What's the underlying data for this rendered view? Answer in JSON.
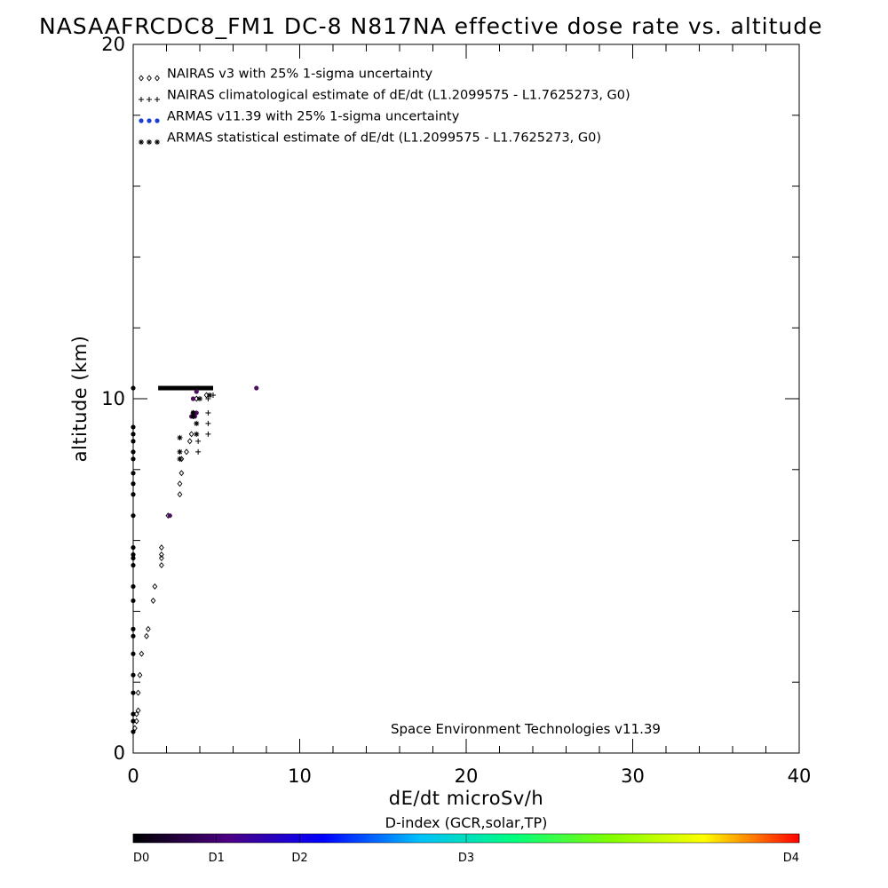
{
  "chart_data": {
    "type": "scatter",
    "title": "NASAAFRCDC8_FM1 DC-8   N817NA effective dose rate vs. altitude",
    "xlabel": "dE/dt microSv/h",
    "ylabel": "altitude (km)",
    "xlim": [
      0,
      40
    ],
    "ylim": [
      0,
      20
    ],
    "x_ticks": [
      "0",
      "10",
      "20",
      "30",
      "40"
    ],
    "y_ticks": [
      "0",
      "10",
      "20"
    ],
    "x_minor_step": 2,
    "y_minor_step": 2,
    "grid": false,
    "legend_placement": "top-left",
    "legend": [
      {
        "label": "NAIRAS v3 with 25% 1-sigma uncertainty",
        "symbol": "diamond"
      },
      {
        "label": "NAIRAS climatological estimate of dE/dt (L1.2099575 - L1.7625273, G0)",
        "symbol": "plus"
      },
      {
        "label": "ARMAS v11.39 with 25% 1-sigma uncertainty",
        "symbol": "dot",
        "color": "#1a3fd1"
      },
      {
        "label": "ARMAS statistical estimate of dE/dt (L1.2099575 - L1.7625273, G0)",
        "symbol": "asterisk"
      }
    ],
    "annotation": "Space Environment Technologies v11.39",
    "colorbar": {
      "title": "D-index (GCR,solar,TP)",
      "labels": [
        "D0",
        "D1",
        "D2",
        "D3",
        "D4"
      ],
      "label_positions": [
        0,
        0.125,
        0.25,
        0.5,
        1.0
      ],
      "colors": [
        "#000000",
        "#4b0082",
        "#0000ff",
        "#00bfff",
        "#00ff7f",
        "#7fff00",
        "#ffff00",
        "#ff0000"
      ]
    },
    "series": [
      {
        "name": "NAIRAS v3 with 25% 1-sigma uncertainty",
        "symbol": "diamond",
        "points": [
          [
            0.1,
            0.7
          ],
          [
            0.2,
            0.9
          ],
          [
            0.2,
            1.1
          ],
          [
            0.3,
            1.2
          ],
          [
            0.3,
            1.7
          ],
          [
            0.4,
            2.2
          ],
          [
            0.5,
            2.8
          ],
          [
            0.8,
            3.3
          ],
          [
            0.9,
            3.5
          ],
          [
            1.2,
            4.3
          ],
          [
            1.3,
            4.7
          ],
          [
            1.7,
            5.3
          ],
          [
            1.7,
            5.5
          ],
          [
            1.7,
            5.6
          ],
          [
            1.7,
            5.8
          ],
          [
            2.1,
            6.7
          ],
          [
            2.8,
            7.3
          ],
          [
            2.8,
            7.6
          ],
          [
            2.9,
            7.9
          ],
          [
            2.9,
            8.3
          ],
          [
            3.2,
            8.5
          ],
          [
            3.4,
            8.8
          ],
          [
            3.5,
            9.0
          ],
          [
            3.6,
            9.6
          ],
          [
            3.8,
            10.0
          ],
          [
            4.4,
            10.1
          ]
        ]
      },
      {
        "name": "NAIRAS climatological estimate of dE/dt (L1.2099575 - L1.7625273, G0)",
        "symbol": "plus",
        "points": [
          [
            3.9,
            8.5
          ],
          [
            3.9,
            8.8
          ],
          [
            4.5,
            9.0
          ],
          [
            4.5,
            9.3
          ],
          [
            4.5,
            9.6
          ],
          [
            4.5,
            10.0
          ],
          [
            4.8,
            10.1
          ]
        ]
      },
      {
        "name": "ARMAS v11.39 with 25% 1-sigma uncertainty",
        "symbol": "dot",
        "points": [
          [
            0.0,
            0.6
          ],
          [
            0.0,
            0.9
          ],
          [
            0.0,
            1.1
          ],
          [
            0.0,
            1.7
          ],
          [
            0.0,
            2.2
          ],
          [
            0.0,
            2.8
          ],
          [
            0.0,
            3.3
          ],
          [
            0.0,
            3.5
          ],
          [
            0.0,
            4.3
          ],
          [
            0.0,
            4.7
          ],
          [
            0.0,
            5.3
          ],
          [
            0.0,
            5.5
          ],
          [
            0.0,
            5.6
          ],
          [
            0.0,
            5.8
          ],
          [
            0.0,
            6.7
          ],
          [
            0.0,
            7.3
          ],
          [
            0.0,
            7.6
          ],
          [
            0.0,
            7.9
          ],
          [
            0.0,
            8.3
          ],
          [
            0.0,
            8.5
          ],
          [
            0.0,
            8.8
          ],
          [
            0.0,
            9.0
          ],
          [
            0.0,
            9.2
          ],
          [
            0.0,
            10.3
          ],
          [
            2.2,
            6.7
          ],
          [
            3.5,
            9.5
          ],
          [
            3.7,
            9.5
          ],
          [
            3.8,
            9.6
          ],
          [
            3.6,
            10.0
          ],
          [
            3.8,
            10.2
          ],
          [
            7.4,
            10.3
          ]
        ]
      },
      {
        "name": "ARMAS statistical estimate of dE/dt (L1.2099575 - L1.7625273, G0)",
        "symbol": "asterisk",
        "points": [
          [
            2.8,
            8.3
          ],
          [
            2.8,
            8.5
          ],
          [
            2.8,
            8.9
          ],
          [
            3.6,
            9.5
          ],
          [
            3.6,
            9.6
          ],
          [
            3.8,
            9.0
          ],
          [
            3.8,
            9.3
          ],
          [
            4.0,
            10.0
          ],
          [
            4.6,
            10.1
          ]
        ]
      }
    ],
    "flight_segment": {
      "x_from": 1.5,
      "x_to": 4.8,
      "y": 10.3
    }
  }
}
